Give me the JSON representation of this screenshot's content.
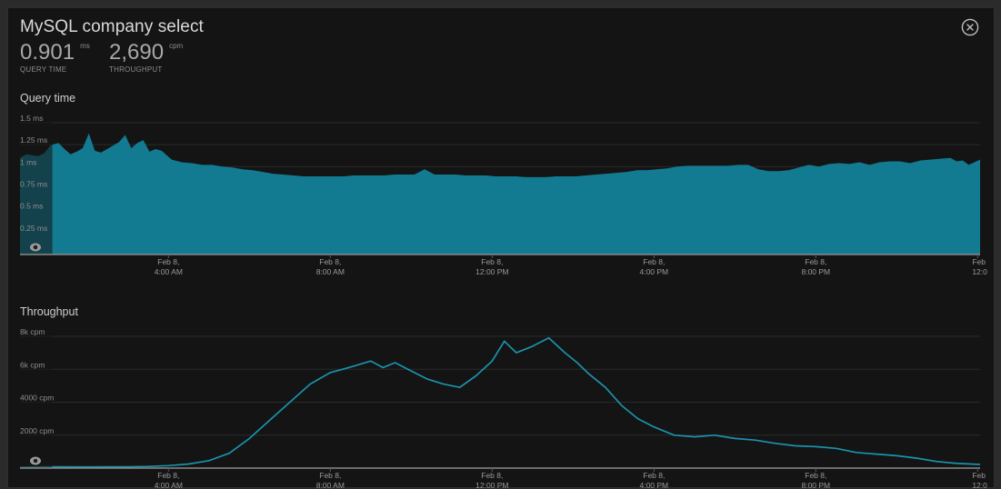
{
  "panel": {
    "title": "MySQL company select",
    "close_icon": "close-circle-icon"
  },
  "stats": [
    {
      "value": "0.901",
      "unit": "ms",
      "label": "QUERY TIME"
    },
    {
      "value": "2,690",
      "unit": "cpm",
      "label": "THROUGHPUT"
    }
  ],
  "colors": {
    "query_fill": "#127b91",
    "throughput_line": "#1b92ab",
    "background": "#141414",
    "grid": "#2a2a2a"
  },
  "chart_data": [
    {
      "type": "area",
      "title": "Query time",
      "y_unit": "ms",
      "ylim": [
        0,
        1.5
      ],
      "y_ticks": [
        {
          "value": 0.25,
          "label": "0.25 ms"
        },
        {
          "value": 0.5,
          "label": "0.5 ms"
        },
        {
          "value": 0.75,
          "label": "0.75 ms"
        },
        {
          "value": 1,
          "label": "1 ms"
        },
        {
          "value": 1.25,
          "label": "1.25 ms"
        },
        {
          "value": 1.5,
          "label": "1.5 ms"
        }
      ],
      "x_ticks": [
        {
          "hours": 4,
          "line1": "Feb 8,",
          "line2": "4:00 AM"
        },
        {
          "hours": 8,
          "line1": "Feb 8,",
          "line2": "8:00 AM"
        },
        {
          "hours": 12,
          "line1": "Feb 8,",
          "line2": "12:00 PM"
        },
        {
          "hours": 16,
          "line1": "Feb 8,",
          "line2": "4:00 PM"
        },
        {
          "hours": 20,
          "line1": "Feb 8,",
          "line2": "8:00 PM"
        },
        {
          "hours": 24,
          "line1": "Feb",
          "line2": "12:0"
        }
      ],
      "x_range_hours": [
        0.33,
        24.06
      ],
      "highlight_until_hours": 1.13,
      "series": [
        {
          "x": [
            0.33,
            0.48,
            0.63,
            0.78,
            0.93,
            1.08,
            1.13,
            1.28,
            1.43,
            1.58,
            1.73,
            1.88,
            2.03,
            2.18,
            2.33,
            2.48,
            2.63,
            2.78,
            2.93,
            3.08,
            3.23,
            3.38,
            3.53,
            3.68,
            3.83,
            4.08,
            4.33,
            4.58,
            4.83,
            5.08,
            5.33,
            5.58,
            5.83,
            6.08,
            6.33,
            6.58,
            6.83,
            7.08,
            7.33,
            7.58,
            7.83,
            8.08,
            8.33,
            8.58,
            8.83,
            9.08,
            9.33,
            9.58,
            9.83,
            10.08,
            10.33,
            10.58,
            10.83,
            10.98,
            11.08,
            11.33,
            11.58,
            11.83,
            12.08,
            12.33,
            12.58,
            12.83,
            13.08,
            13.33,
            13.58,
            13.83,
            14.08,
            14.33,
            14.58,
            14.83,
            15.08,
            15.33,
            15.58,
            15.83,
            16.08,
            16.33,
            16.58,
            16.83,
            17.08,
            17.33,
            17.58,
            17.83,
            18.08,
            18.33,
            18.58,
            18.83,
            19.08,
            19.33,
            19.58,
            19.83,
            20.08,
            20.33,
            20.58,
            20.83,
            21.08,
            21.33,
            21.58,
            21.83,
            22.08,
            22.33,
            22.58,
            22.83,
            23.08,
            23.33,
            23.48,
            23.63,
            23.78,
            24.06
          ],
          "y": [
            1.1,
            1.14,
            1.13,
            1.12,
            1.15,
            1.24,
            1.25,
            1.27,
            1.2,
            1.14,
            1.17,
            1.21,
            1.38,
            1.18,
            1.16,
            1.2,
            1.24,
            1.28,
            1.36,
            1.21,
            1.27,
            1.3,
            1.17,
            1.2,
            1.18,
            1.08,
            1.05,
            1.04,
            1.02,
            1.02,
            1.0,
            0.99,
            0.97,
            0.96,
            0.94,
            0.92,
            0.91,
            0.9,
            0.89,
            0.89,
            0.89,
            0.89,
            0.89,
            0.9,
            0.9,
            0.9,
            0.9,
            0.91,
            0.91,
            0.91,
            0.97,
            0.91,
            0.91,
            0.91,
            0.91,
            0.9,
            0.9,
            0.9,
            0.89,
            0.89,
            0.89,
            0.88,
            0.88,
            0.88,
            0.89,
            0.89,
            0.89,
            0.9,
            0.91,
            0.92,
            0.93,
            0.94,
            0.96,
            0.96,
            0.97,
            0.98,
            1.0,
            1.01,
            1.01,
            1.01,
            1.01,
            1.01,
            1.02,
            1.02,
            0.97,
            0.95,
            0.95,
            0.96,
            0.99,
            1.02,
            1.0,
            1.03,
            1.04,
            1.03,
            1.05,
            1.02,
            1.05,
            1.06,
            1.06,
            1.04,
            1.07,
            1.08,
            1.09,
            1.1,
            1.06,
            1.07,
            1.02,
            1.08
          ]
        }
      ]
    },
    {
      "type": "line",
      "title": "Throughput",
      "y_unit": "cpm",
      "ylim": [
        0,
        8000
      ],
      "y_ticks": [
        {
          "value": 2000,
          "label": "2000 cpm"
        },
        {
          "value": 4000,
          "label": "4000 cpm"
        },
        {
          "value": 6000,
          "label": "6k cpm"
        },
        {
          "value": 8000,
          "label": "8k cpm"
        }
      ],
      "x_ticks": [
        {
          "hours": 4,
          "line1": "Feb 8,",
          "line2": "4:00 AM"
        },
        {
          "hours": 8,
          "line1": "Feb 8,",
          "line2": "8:00 AM"
        },
        {
          "hours": 12,
          "line1": "Feb 8,",
          "line2": "12:00 PM"
        },
        {
          "hours": 16,
          "line1": "Feb 8,",
          "line2": "4:00 PM"
        },
        {
          "hours": 20,
          "line1": "Feb 8,",
          "line2": "8:00 PM"
        },
        {
          "hours": 24,
          "line1": "Feb",
          "line2": "12:0"
        }
      ],
      "x_range_hours": [
        0.33,
        24.06
      ],
      "highlight_until_hours": 1.13,
      "series": [
        {
          "x": [
            0.33,
            1.0,
            2.0,
            3.0,
            3.5,
            4.0,
            4.5,
            5.0,
            5.5,
            6.0,
            6.5,
            7.0,
            7.5,
            8.0,
            8.3,
            8.6,
            9.0,
            9.3,
            9.6,
            10.0,
            10.4,
            10.8,
            11.2,
            11.6,
            12.0,
            12.3,
            12.6,
            13.0,
            13.4,
            13.8,
            14.1,
            14.4,
            14.8,
            15.2,
            15.6,
            16.0,
            16.5,
            17.0,
            17.5,
            18.0,
            18.5,
            19.0,
            19.5,
            20.0,
            20.5,
            21.0,
            21.5,
            22.0,
            22.5,
            23.0,
            23.5,
            24.06
          ],
          "y": [
            50,
            80,
            70,
            80,
            100,
            150,
            250,
            450,
            900,
            1800,
            2900,
            4000,
            5100,
            5800,
            6000,
            6200,
            6500,
            6100,
            6400,
            5900,
            5400,
            5100,
            4900,
            5600,
            6500,
            7700,
            7000,
            7400,
            7900,
            7000,
            6400,
            5700,
            4900,
            3800,
            3000,
            2500,
            2000,
            1900,
            2000,
            1800,
            1700,
            1500,
            1350,
            1300,
            1200,
            950,
            850,
            750,
            600,
            400,
            280,
            220
          ]
        }
      ]
    }
  ]
}
